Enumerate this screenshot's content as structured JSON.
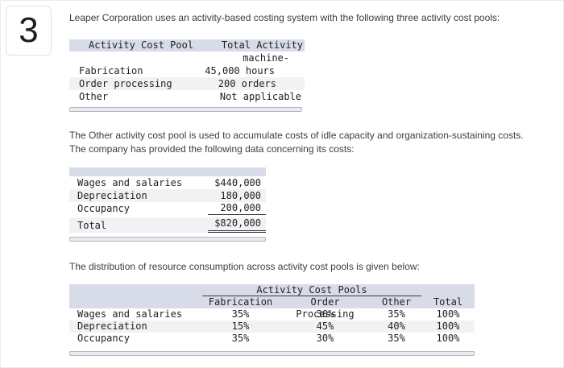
{
  "question": {
    "number": "3"
  },
  "paragraphs": {
    "intro": "Leaper Corporation uses an activity-based costing system with the following three activity cost pools:",
    "other_pool_line1": "The Other activity cost pool is used to accumulate costs of idle capacity and organization-sustaining costs.",
    "other_pool_line2": "The company has provided the following data concerning its costs:",
    "distribution": "The distribution of resource consumption across activity cost pools is given below:"
  },
  "activity_table": {
    "headers": {
      "pool": "Activity Cost Pool",
      "total_activity": "Total Activity"
    },
    "wrap_unit": "machine-",
    "rows": [
      {
        "label": "Fabrication",
        "value": "45,000 hours"
      },
      {
        "label": "Order processing",
        "value": "200 orders"
      },
      {
        "label": "Other",
        "value": "Not applicable"
      }
    ]
  },
  "cost_table": {
    "rows": [
      {
        "label": "Wages and salaries",
        "value": "$440,000"
      },
      {
        "label": "Depreciation",
        "value": "180,000"
      },
      {
        "label": "Occupancy",
        "value": "200,000"
      }
    ],
    "total_row": {
      "label": "Total",
      "value": "$820,000"
    }
  },
  "distribution_table": {
    "group_header": "Activity Cost Pools",
    "col_headers": {
      "c1": "Fabrication",
      "c2": "Order Processing",
      "c3": "Other",
      "c4": "Total"
    },
    "rows": [
      {
        "label": "Wages and salaries",
        "v1": "35%",
        "v2": "30%",
        "v3": "35%",
        "v4": "100%"
      },
      {
        "label": "Depreciation",
        "v1": "15%",
        "v2": "45%",
        "v3": "40%",
        "v4": "100%"
      },
      {
        "label": "Occupancy",
        "v1": "35%",
        "v2": "30%",
        "v3": "35%",
        "v4": "100%"
      }
    ]
  },
  "colors": {
    "table_header_fill": "#d8dce8",
    "alt_row_fill": "#f2f2f4",
    "end_bar_fill": "#e9ebf1",
    "end_bar_border": "#b4b7c2"
  }
}
